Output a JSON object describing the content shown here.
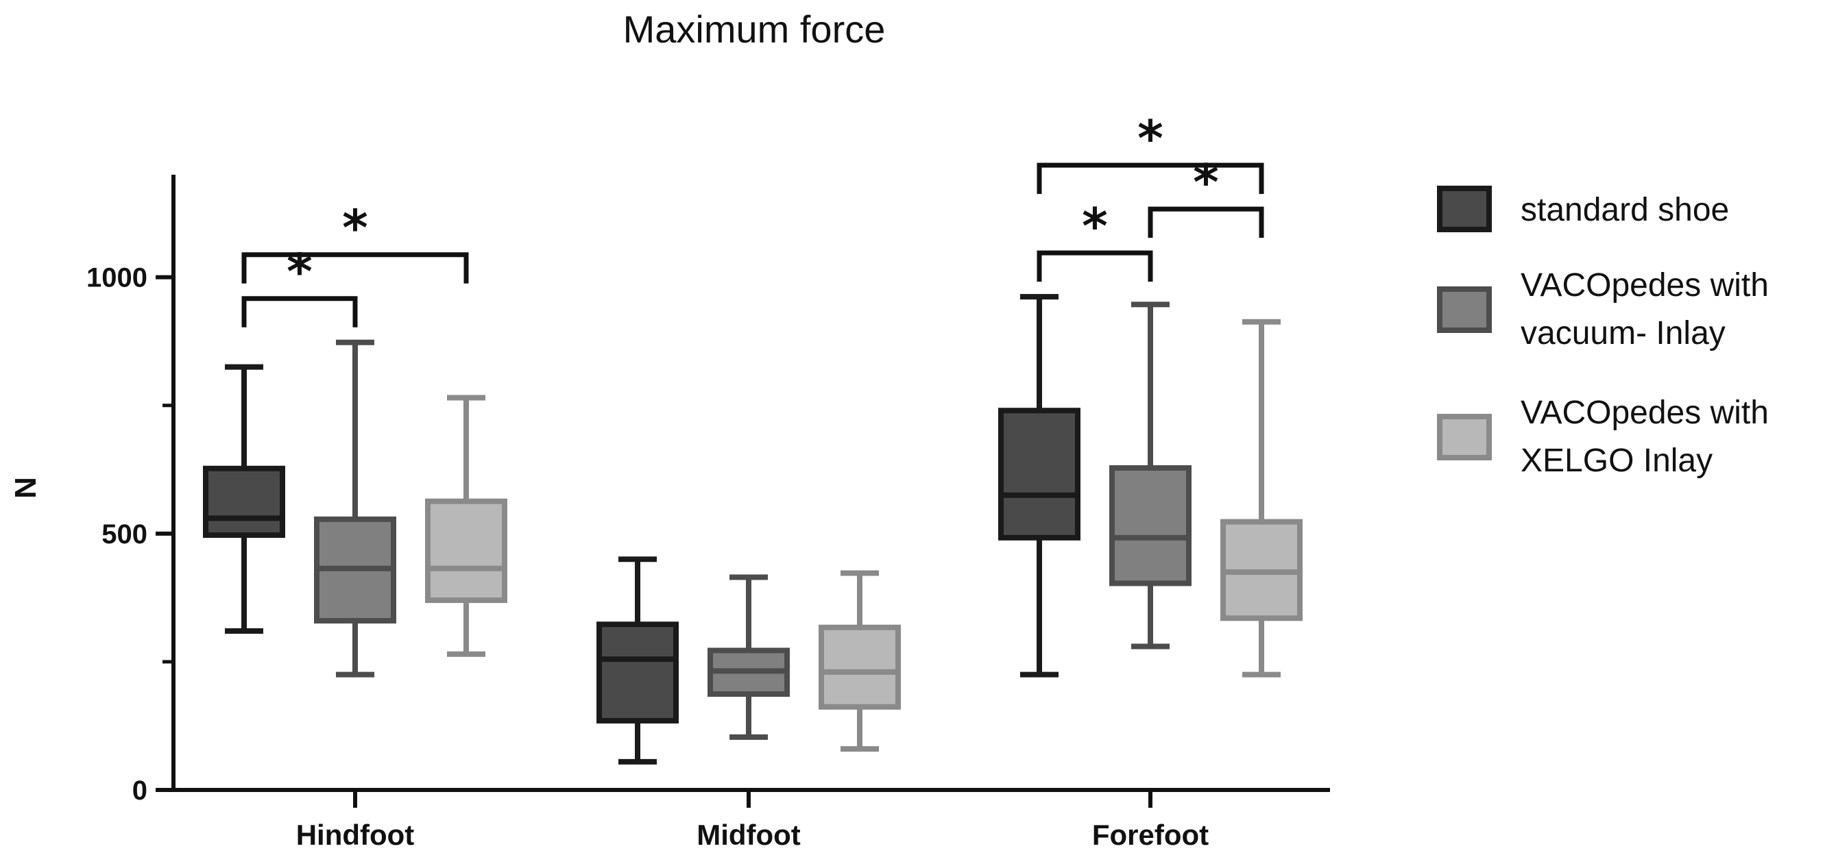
{
  "chart_data": {
    "type": "box",
    "title": "Maximum force",
    "ylabel": "N",
    "xlabel": "",
    "ylim": [
      0,
      1200
    ],
    "yticks": [
      0,
      500,
      1000
    ],
    "categories": [
      "Hindfoot",
      "Midfoot",
      "Forefoot"
    ],
    "grid": false,
    "legend_position": "right",
    "series": [
      {
        "name": "standard shoe",
        "fill": "#4a4a4a",
        "stroke": "#1a1a1a",
        "boxes": [
          {
            "min": 310,
            "q1": 497,
            "median": 530,
            "q3": 627,
            "max": 825
          },
          {
            "min": 55,
            "q1": 135,
            "median": 255,
            "q3": 323,
            "max": 450
          },
          {
            "min": 225,
            "q1": 492,
            "median": 575,
            "q3": 740,
            "max": 962
          }
        ]
      },
      {
        "name": "VACOpedes with vacuum- Inlay",
        "fill": "#808080",
        "stroke": "#4d4d4d",
        "boxes": [
          {
            "min": 225,
            "q1": 330,
            "median": 432,
            "q3": 528,
            "max": 873
          },
          {
            "min": 103,
            "q1": 187,
            "median": 232,
            "q3": 272,
            "max": 415
          },
          {
            "min": 280,
            "q1": 403,
            "median": 492,
            "q3": 628,
            "max": 947
          }
        ]
      },
      {
        "name": "VACOpedes with XELGO Inlay",
        "fill": "#b8b8b8",
        "stroke": "#8a8a8a",
        "boxes": [
          {
            "min": 265,
            "q1": 370,
            "median": 432,
            "q3": 563,
            "max": 765
          },
          {
            "min": 80,
            "q1": 162,
            "median": 230,
            "q3": 317,
            "max": 423
          },
          {
            "min": 225,
            "q1": 335,
            "median": 425,
            "q3": 523,
            "max": 913
          }
        ]
      }
    ],
    "significance": [
      {
        "category": 0,
        "from": 0,
        "to": 1,
        "label": "*"
      },
      {
        "category": 0,
        "from": 0,
        "to": 2,
        "label": "*"
      },
      {
        "category": 2,
        "from": 0,
        "to": 1,
        "label": "*"
      },
      {
        "category": 2,
        "from": 1,
        "to": 2,
        "label": "*"
      },
      {
        "category": 2,
        "from": 0,
        "to": 2,
        "label": "*"
      }
    ]
  }
}
